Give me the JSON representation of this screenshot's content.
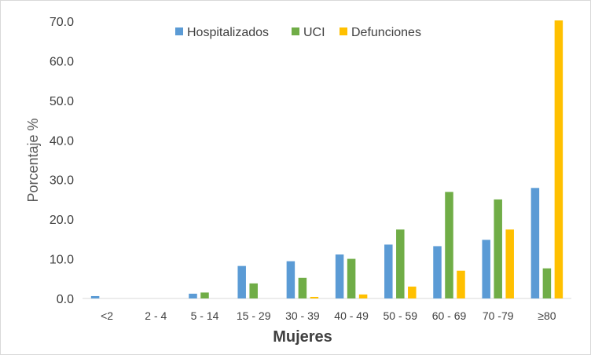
{
  "chart_data": {
    "type": "bar",
    "title": "",
    "xlabel": "Mujeres",
    "ylabel": "Porcentaje %",
    "ylim": [
      0,
      70
    ],
    "yticks": [
      "0.0",
      "10.0",
      "20.0",
      "30.0",
      "40.0",
      "50.0",
      "60.0",
      "70.0"
    ],
    "categories": [
      "<2",
      "2 - 4",
      "5 - 14",
      "15 - 29",
      "30 - 39",
      "40 - 49",
      "50 - 59",
      "60 - 69",
      "70 -79",
      "≥80"
    ],
    "series": [
      {
        "name": "Hospitalizados",
        "color": "#5b9bd5",
        "values": [
          0.6,
          0,
          1.2,
          8.2,
          9.4,
          11.1,
          13.6,
          13.2,
          14.8,
          27.9
        ]
      },
      {
        "name": "UCI",
        "color": "#70ad47",
        "values": [
          0,
          0,
          1.5,
          3.8,
          5.2,
          10.0,
          17.4,
          26.9,
          25.0,
          7.6
        ]
      },
      {
        "name": "Defunciones",
        "color": "#ffc000",
        "values": [
          0,
          0,
          0,
          0,
          0.4,
          1.0,
          3.0,
          7.0,
          17.4,
          70.2
        ]
      }
    ],
    "legend_position": "top",
    "grid": false
  }
}
